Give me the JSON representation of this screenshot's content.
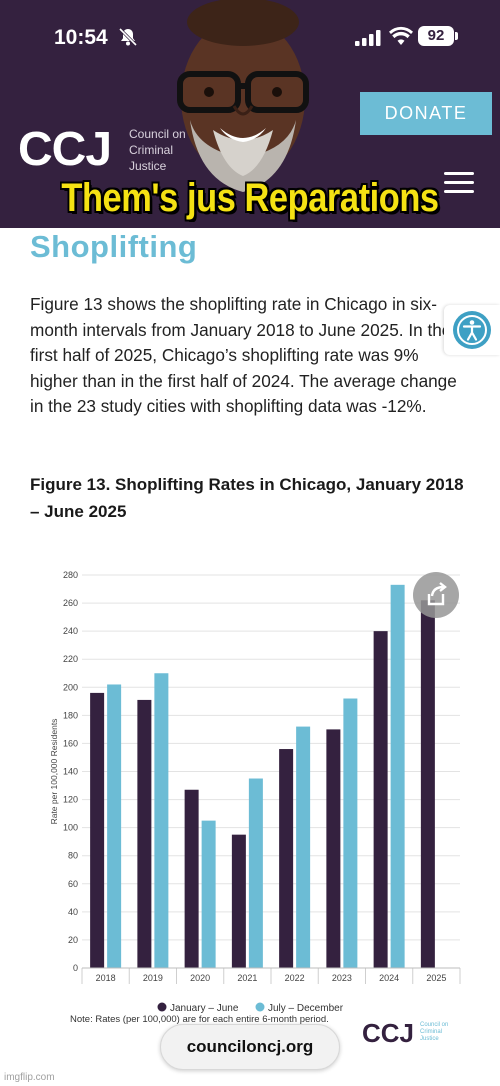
{
  "status_bar": {
    "time": "10:54",
    "battery": "92",
    "icons": [
      "bell-slash-icon",
      "cellular-signal-icon",
      "wifi-icon",
      "battery-icon"
    ]
  },
  "header": {
    "logo": "CCJ",
    "logo_sub": [
      "Council on",
      "Criminal",
      "Justice"
    ],
    "donate_label": "DONATE",
    "menu_icon": "hamburger-menu-icon",
    "colors": {
      "background": "#34213f",
      "accent": "#6cbcd5"
    }
  },
  "meme": {
    "caption": "Them's jus Reparations"
  },
  "article": {
    "section_title": "Shoplifting",
    "body": "Figure 13 shows the shoplifting rate in Chicago in six-month intervals from January 2018 to June 2025. In the first half of 2025, Chicago’s shoplifting rate was 9% higher than in the first half of 2024. The average change in the 23 study cities with shoplifting data was -12%.",
    "figure_title": "Figure 13. Shoplifting Rates in Chicago, January 2018 – June 2025",
    "accessibility_icon": "accessibility-icon"
  },
  "chart_data": {
    "type": "bar",
    "categories": [
      "2018",
      "2019",
      "2020",
      "2021",
      "2022",
      "2023",
      "2024",
      "2025"
    ],
    "series": [
      {
        "name": "January – June",
        "color": "#34213f",
        "values": [
          196,
          191,
          127,
          95,
          156,
          170,
          240,
          262
        ]
      },
      {
        "name": "July – December",
        "color": "#6cbcd5",
        "values": [
          202,
          210,
          105,
          135,
          172,
          192,
          273,
          null
        ]
      }
    ],
    "ylabel": "Rate per 100,000 Residents",
    "ylim": [
      0,
      280
    ],
    "yticks": [
      "0",
      "20",
      "40",
      "60",
      "80",
      "100",
      "120",
      "140",
      "160",
      "180",
      "200",
      "220",
      "240",
      "260",
      "280"
    ],
    "grid": true,
    "legend_position": "bottom",
    "note": "Note: Rates (per 100,000) are for each entire 6-month period.",
    "share_icon": "share-icon",
    "logo": "CCJ",
    "logo_sub": [
      "Council on",
      "Criminal",
      "Justice"
    ]
  },
  "browser": {
    "url": "counciloncj.org"
  },
  "watermark": "imgflip.com"
}
